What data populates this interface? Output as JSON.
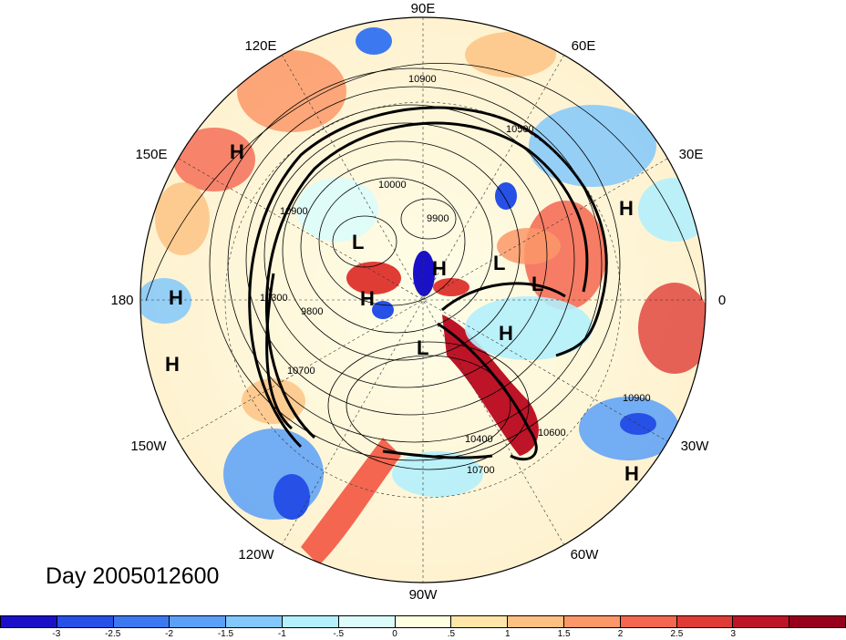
{
  "title": "Day 2005012600",
  "longitude_labels": [
    "90E",
    "60E",
    "30E",
    "0",
    "30W",
    "60W",
    "90W",
    "120W",
    "150W",
    "180",
    "150E",
    "120E"
  ],
  "pressure_centers": [
    "H",
    "H",
    "H",
    "H",
    "H",
    "H",
    "H",
    "H",
    "L",
    "L",
    "L",
    "L"
  ],
  "contour_labels": [
    "10900",
    "10700",
    "10500",
    "10300",
    "10000",
    "9900",
    "9800",
    "10400",
    "10900",
    "10600",
    "10700",
    "10900"
  ],
  "colorbar": {
    "colors": [
      "#1a10c8",
      "#2650e6",
      "#3c78f0",
      "#5aa0f8",
      "#82c8fc",
      "#b4f0fc",
      "#dcfcfc",
      "#fefee0",
      "#fee6a8",
      "#fcc080",
      "#fc9868",
      "#f46650",
      "#e03c36",
      "#be1428",
      "#96001c"
    ],
    "ticks": [
      "-3",
      "-2.5",
      "-2",
      "-1.5",
      "-1",
      "-.5",
      "0",
      ".5",
      "1",
      "1.5",
      "2",
      "2.5",
      "3"
    ]
  }
}
